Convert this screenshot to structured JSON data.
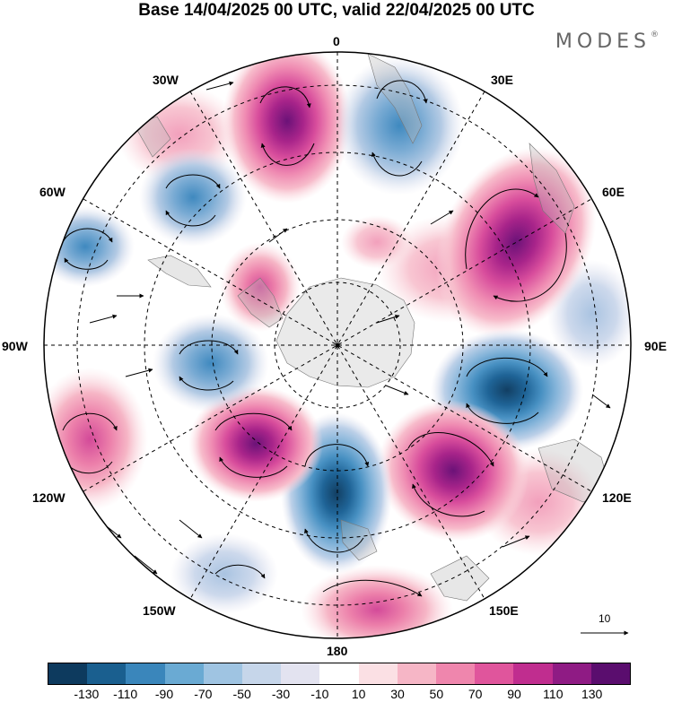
{
  "map": {
    "title": "Base 14/04/2025 00 UTC, valid 22/04/2025 00 UTC",
    "brand": "MODES",
    "brand_mark": "®",
    "lon_labels": {
      "top": "0",
      "n30e": "30E",
      "n60e": "60E",
      "e90": "90E",
      "n120e": "120E",
      "n150e": "150E",
      "bottom": "180",
      "n150w": "150W",
      "n120w": "120W",
      "w90": "90W",
      "n60w": "60W",
      "n30w": "30W"
    },
    "reference_vector": "10",
    "colorbar": {
      "colors": [
        "#0d3a5e",
        "#1a5f8f",
        "#3a86bb",
        "#6aaad3",
        "#9fc4e2",
        "#c6d6ea",
        "#e3e3f0",
        "#ffffff",
        "#fbe0e4",
        "#f6b6c6",
        "#ef86ad",
        "#e0559c",
        "#c02d8f",
        "#8f1b84",
        "#5a0d6e"
      ],
      "ticks": [
        "-130",
        "-110",
        "-90",
        "-70",
        "-50",
        "-30",
        "-10",
        "10",
        "30",
        "50",
        "70",
        "90",
        "110",
        "130"
      ]
    },
    "anomaly_centres": [
      {
        "sign": "negative",
        "strength": "strong",
        "lon": "115E"
      },
      {
        "sign": "positive",
        "strength": "strong",
        "lon": "145E"
      },
      {
        "sign": "negative",
        "strength": "strong",
        "lon": "170E"
      },
      {
        "sign": "positive",
        "strength": "strong",
        "lon": "150W"
      },
      {
        "sign": "positive",
        "strength": "strong",
        "lon": "25W"
      },
      {
        "sign": "negative",
        "strength": "moderate",
        "lon": "20E"
      },
      {
        "sign": "positive",
        "strength": "strong",
        "lon": "50E"
      },
      {
        "sign": "negative",
        "strength": "moderate",
        "lon": "90W"
      },
      {
        "sign": "positive",
        "strength": "moderate",
        "lon": "120W"
      },
      {
        "sign": "negative",
        "strength": "moderate",
        "lon": "60W"
      },
      {
        "sign": "negative",
        "strength": "moderate",
        "lon": "75W"
      }
    ]
  }
}
